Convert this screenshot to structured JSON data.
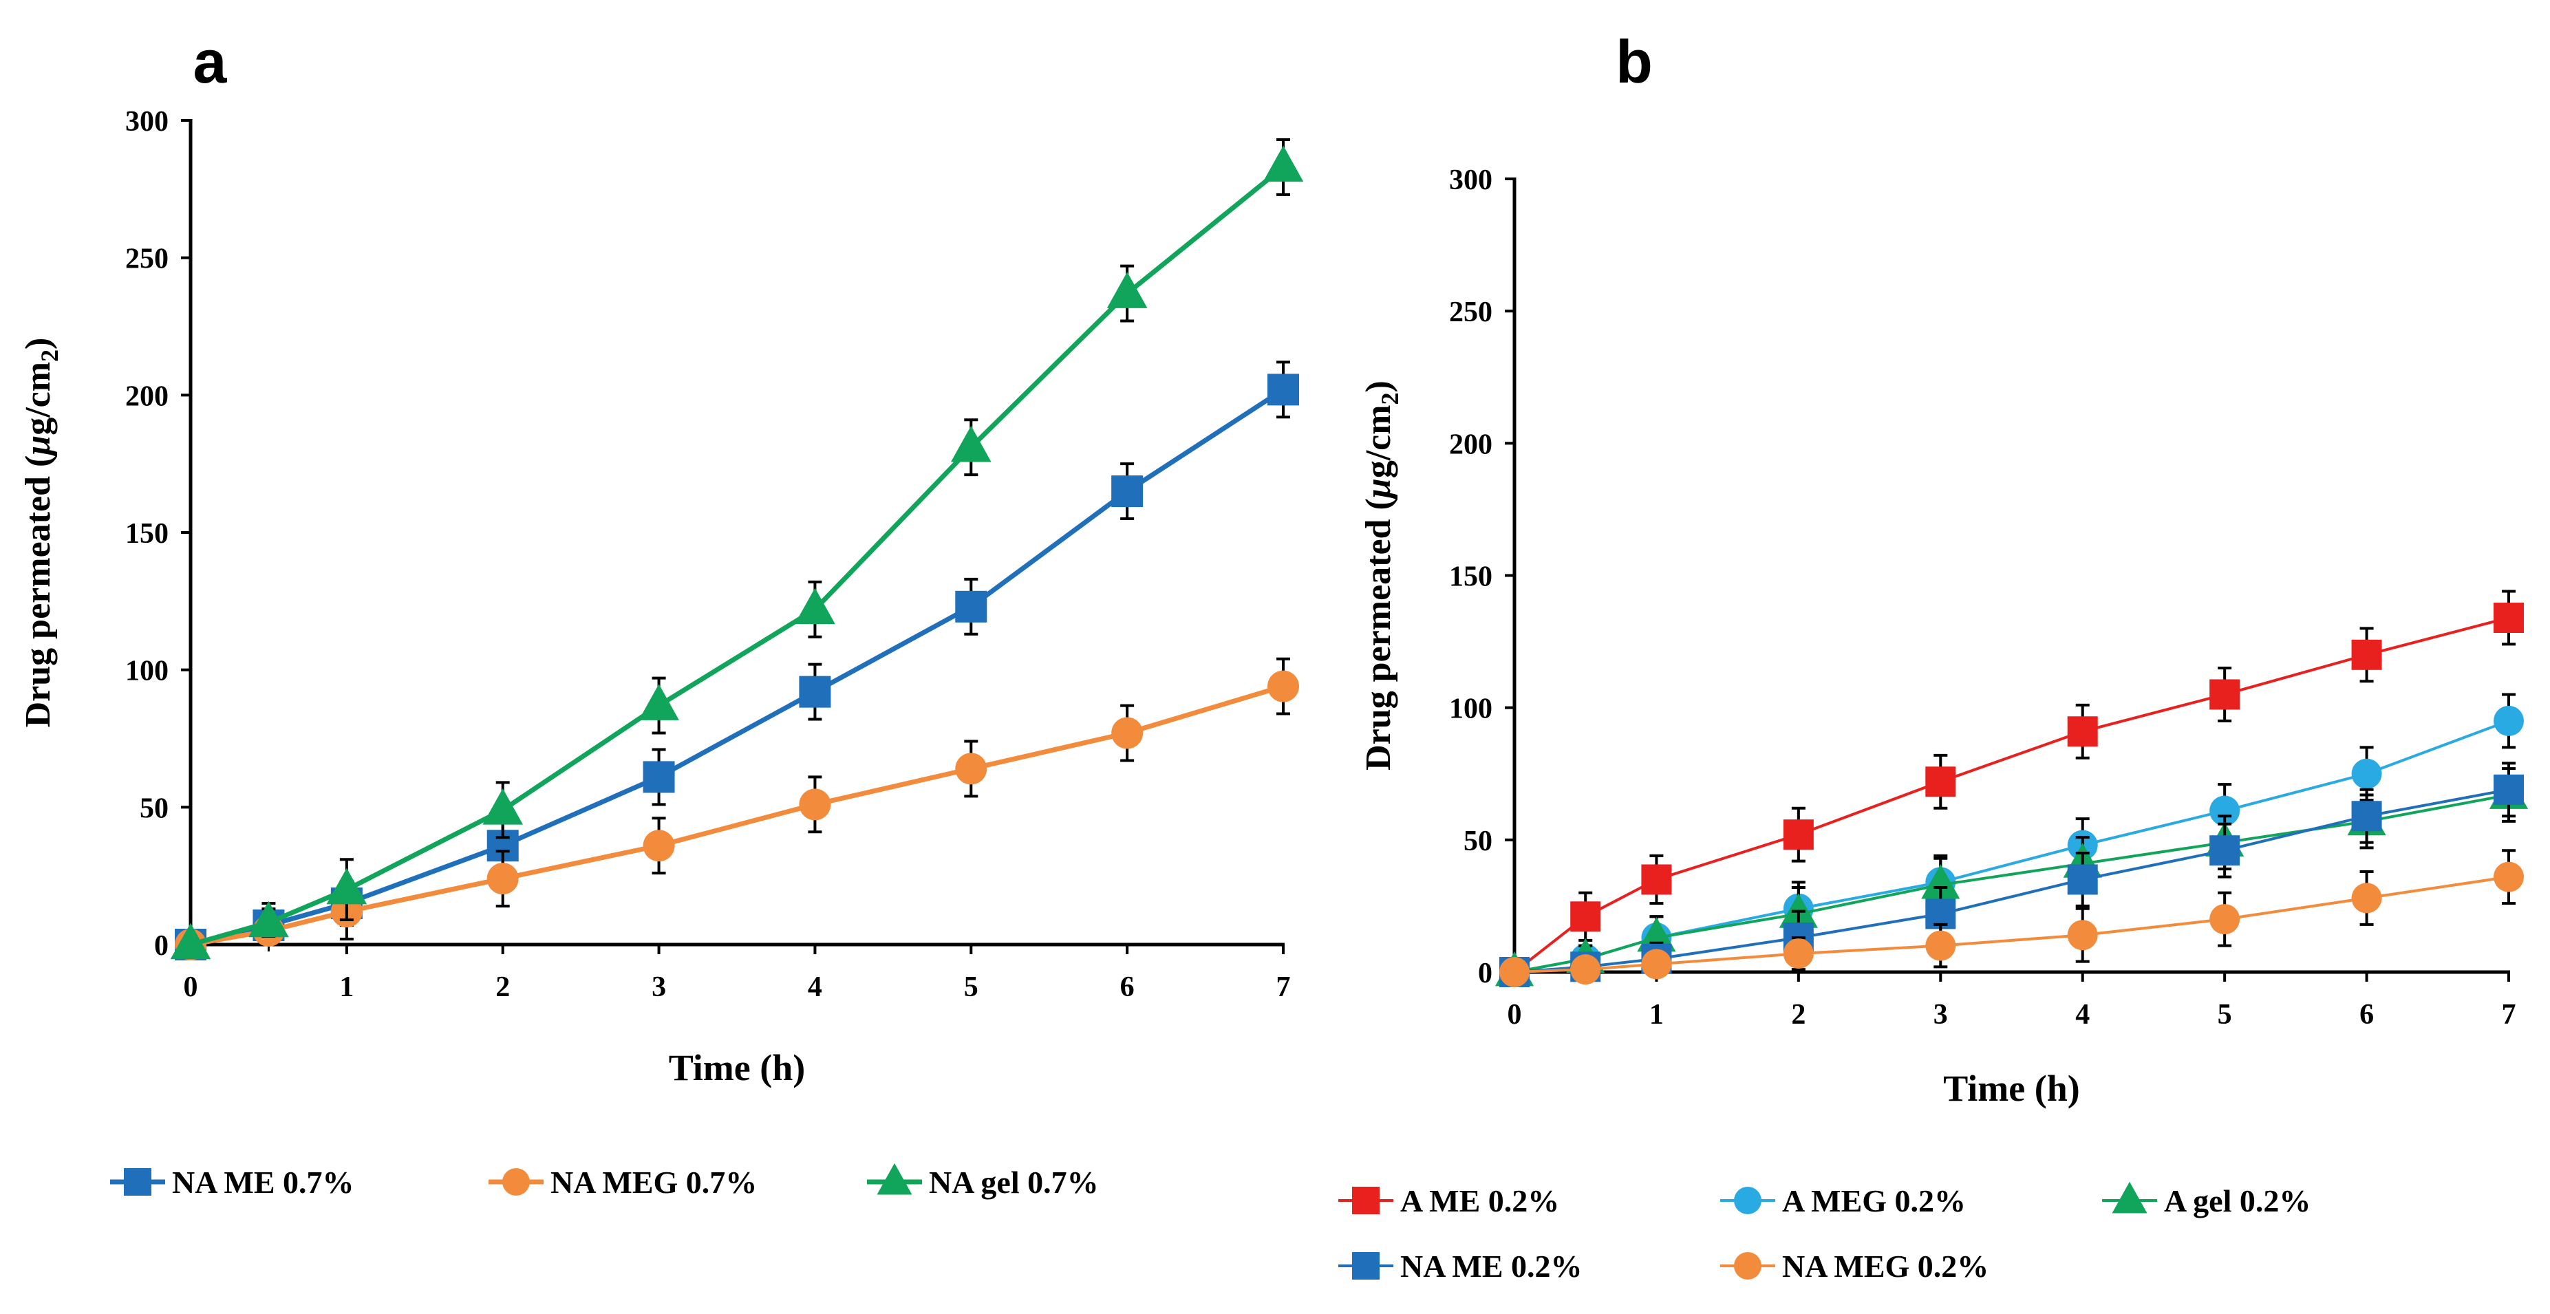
{
  "chart_data": [
    {
      "type": "line",
      "panel_label": "a",
      "title": "",
      "xlabel": "Time (h)",
      "ylabel_prefix": "Drug permeated (",
      "ylabel_mu": "μ",
      "ylabel_unit": "g/cm",
      "ylabel_sub": "2",
      "ylabel_suffix": ")",
      "xlim": [
        0,
        7
      ],
      "ylim": [
        0,
        300
      ],
      "xticks": [
        0,
        1,
        2,
        3,
        4,
        5,
        6,
        7
      ],
      "yticks": [
        0,
        50,
        100,
        150,
        200,
        250,
        300
      ],
      "grid": false,
      "legend_position": "bottom",
      "series": [
        {
          "name": "NA ME 0.7%",
          "color": "#1f6fba",
          "marker": "square",
          "x": [
            0,
            0.5,
            1,
            2,
            3,
            4,
            5,
            6,
            7
          ],
          "y": [
            0,
            7,
            15,
            36,
            61,
            92,
            123,
            165,
            202
          ],
          "err": [
            3,
            8,
            8,
            10,
            10,
            10,
            10,
            10,
            10
          ]
        },
        {
          "name": "NA MEG 0.7%",
          "color": "#f28c3c",
          "marker": "circle",
          "x": [
            0,
            0.5,
            1,
            2,
            3,
            4,
            5,
            6,
            7
          ],
          "y": [
            0,
            5,
            12,
            24,
            36,
            51,
            64,
            77,
            94
          ],
          "err": [
            2,
            4,
            10,
            10,
            10,
            10,
            10,
            10,
            10
          ]
        },
        {
          "name": "NA gel 0.7%",
          "color": "#10a55a",
          "marker": "triangle",
          "x": [
            0,
            0.5,
            1,
            2,
            3,
            4,
            5,
            6,
            7
          ],
          "y": [
            0,
            8,
            20,
            49,
            87,
            122,
            181,
            237,
            283
          ],
          "err": [
            3,
            5,
            11,
            10,
            10,
            10,
            10,
            10,
            10
          ]
        }
      ]
    },
    {
      "type": "line",
      "panel_label": "b",
      "title": "",
      "xlabel": "Time (h)",
      "ylabel_prefix": "Drug permeated (",
      "ylabel_mu": "μ",
      "ylabel_unit": "g/cm",
      "ylabel_sub": "2",
      "ylabel_suffix": ")",
      "xlim": [
        0,
        7
      ],
      "ylim": [
        0,
        300
      ],
      "xticks": [
        0,
        1,
        2,
        3,
        4,
        5,
        6,
        7
      ],
      "yticks": [
        0,
        50,
        100,
        150,
        200,
        250,
        300
      ],
      "grid": false,
      "legend_position": "bottom",
      "series": [
        {
          "name": "A  ME 0.2%",
          "color": "#e8211f",
          "marker": "square",
          "x": [
            0,
            0.5,
            1,
            2,
            3,
            4,
            5,
            6,
            7
          ],
          "y": [
            0,
            21,
            35,
            52,
            72,
            91,
            105,
            120,
            134
          ],
          "err": [
            2,
            9,
            9,
            10,
            10,
            10,
            10,
            10,
            10
          ]
        },
        {
          "name": "A MEG 0.2%",
          "color": "#2aaae2",
          "marker": "circle",
          "x": [
            0,
            0.5,
            1,
            2,
            3,
            4,
            5,
            6,
            7
          ],
          "y": [
            0,
            5,
            13,
            24,
            34,
            48,
            61,
            75,
            95
          ],
          "err": [
            2,
            5,
            8,
            10,
            10,
            10,
            10,
            10,
            10
          ]
        },
        {
          "name": "A  gel 0.2%",
          "color": "#10a55a",
          "marker": "triangle",
          "x": [
            0,
            0.5,
            1,
            2,
            3,
            4,
            5,
            6,
            7
          ],
          "y": [
            0,
            5,
            13,
            22,
            33,
            41,
            49,
            57,
            67
          ],
          "err": [
            2,
            5,
            8,
            10,
            10,
            10,
            10,
            10,
            10
          ]
        },
        {
          "name": "NA ME 0.2%",
          "color": "#1f6fba",
          "marker": "square",
          "x": [
            0,
            0.5,
            1,
            2,
            3,
            4,
            5,
            6,
            7
          ],
          "y": [
            0,
            2,
            5,
            13,
            22,
            35,
            46,
            59,
            69
          ],
          "err": [
            2,
            4,
            6,
            10,
            10,
            10,
            10,
            10,
            10
          ]
        },
        {
          "name": "NA MEG 0.2%",
          "color": "#f28c3c",
          "marker": "circle",
          "x": [
            0,
            0.5,
            1,
            2,
            3,
            4,
            5,
            6,
            7
          ],
          "y": [
            0,
            1,
            3,
            7,
            10,
            14,
            20,
            28,
            36
          ],
          "err": [
            1,
            2,
            4,
            6,
            8,
            10,
            10,
            10,
            10
          ]
        }
      ]
    }
  ]
}
